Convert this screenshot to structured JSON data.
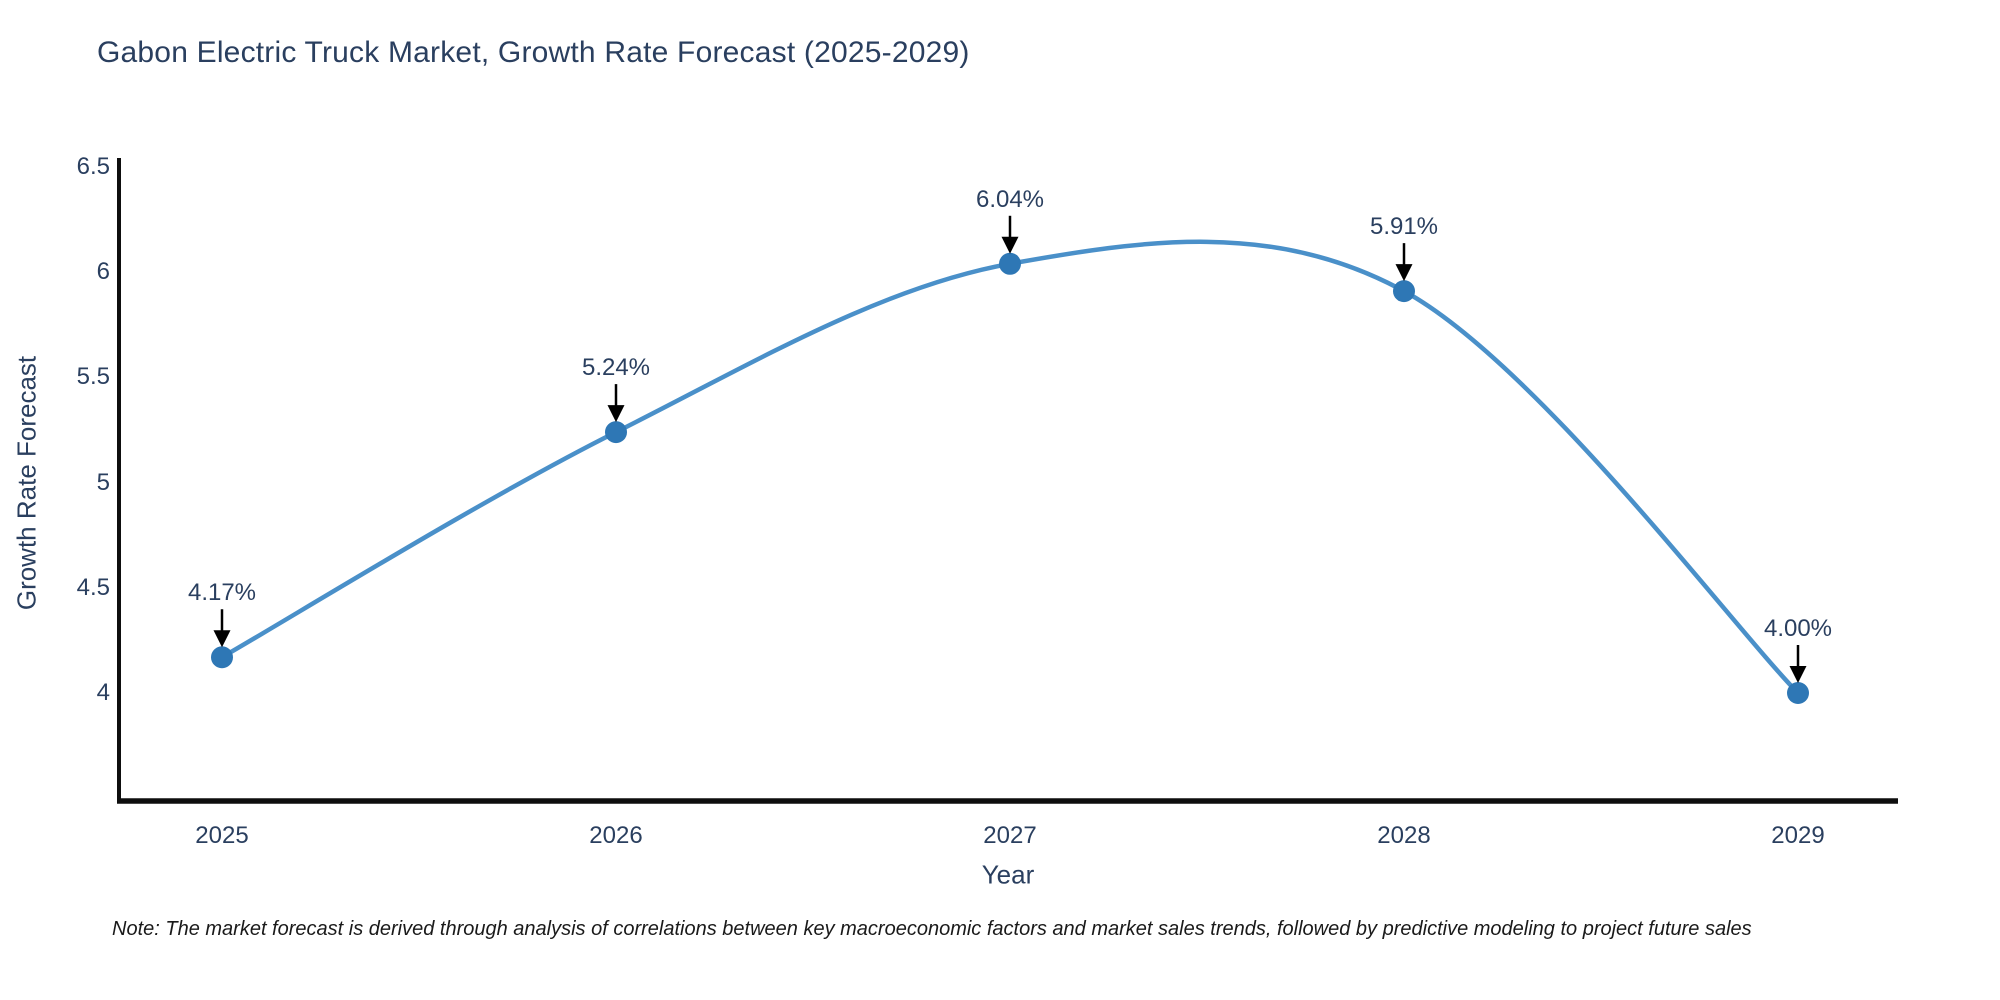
{
  "title": "Gabon Electric Truck Market, Growth Rate Forecast (2025-2029)",
  "note": "Note: The market forecast is derived through analysis of correlations between key macroeconomic factors and market sales trends, followed by predictive modeling to project future sales",
  "chart_data": {
    "type": "line",
    "title": "Gabon Electric Truck Market, Growth Rate Forecast (2025-2029)",
    "xlabel": "Year",
    "ylabel": "Growth Rate Forecast",
    "x": [
      2025,
      2026,
      2027,
      2028,
      2029
    ],
    "values": [
      4.17,
      5.24,
      6.04,
      5.91,
      4.0
    ],
    "point_labels": [
      "4.17%",
      "5.24%",
      "6.04%",
      "5.91%",
      "4.00%"
    ],
    "xticks": [
      "2025",
      "2026",
      "2027",
      "2028",
      "2029"
    ],
    "yticks": [
      4,
      4.5,
      5,
      5.5,
      6,
      6.5
    ],
    "ytick_labels": [
      "4",
      "4.5",
      "5",
      "5.5",
      "6",
      "6.5"
    ],
    "ylim": [
      3.49,
      6.53
    ],
    "line_shape": "spline",
    "grid": false,
    "legend": "none",
    "colors": {
      "line": "#4a90c9",
      "marker": "#2e77b5",
      "axis": "#0e0e0e",
      "arrow": "#000000",
      "text": "#2a3f5f"
    }
  }
}
